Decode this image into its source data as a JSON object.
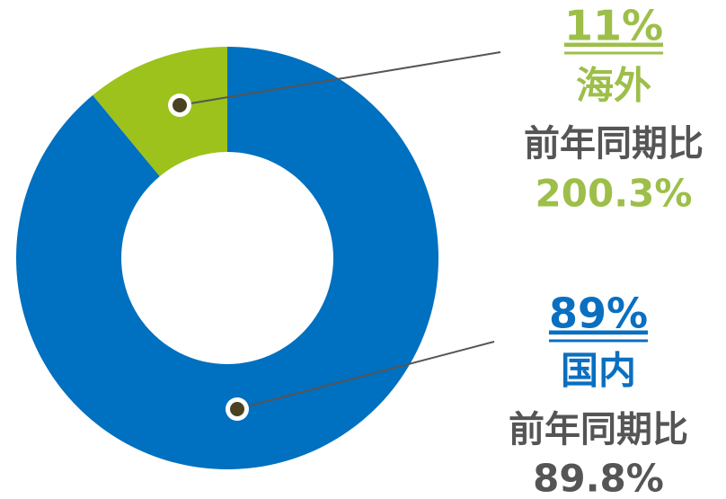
{
  "chart_data": {
    "type": "pie",
    "donut": true,
    "categories": [
      "国内",
      "海外"
    ],
    "values": [
      89,
      11
    ],
    "value_labels": [
      "89%",
      "11%"
    ],
    "colors": [
      "#0070c0",
      "#9cc21b"
    ],
    "label_colors": [
      "#0a6fc0",
      "#9dbf4a"
    ],
    "annotations": [
      {
        "label": "前年同期比",
        "text": "89.8%"
      },
      {
        "label": "前年同期比",
        "text": "200.3%"
      }
    ]
  }
}
